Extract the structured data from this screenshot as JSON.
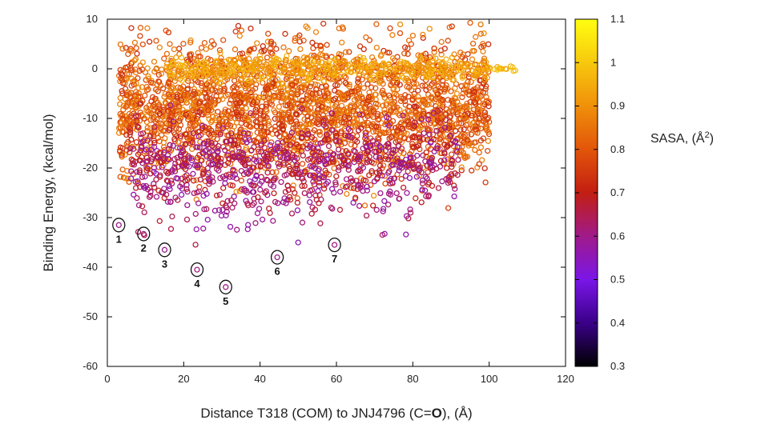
{
  "chart_data": {
    "type": "scatter",
    "title": "",
    "xlabel_parts": [
      "Distance T318 (COM) to JNJ4796 (C=",
      "O",
      "), (Å)"
    ],
    "ylabel": "Binding Energy, (kcal/mol)",
    "xlim": [
      0,
      120
    ],
    "ylim": [
      -60,
      10
    ],
    "xticks": [
      0,
      20,
      40,
      60,
      80,
      100,
      120
    ],
    "yticks": [
      -60,
      -50,
      -40,
      -30,
      -20,
      -10,
      0,
      10
    ],
    "grid": false,
    "colorbar": {
      "title_parts": [
        "SASA, (Å",
        "2",
        ")"
      ],
      "range": [
        0.3,
        1.1
      ],
      "ticks": [
        "0.3",
        "0.4",
        "0.5",
        "0.6",
        "0.7",
        "0.8",
        "0.9",
        "1",
        "1.1"
      ],
      "colormap": [
        "#000000",
        "#3a0088",
        "#7a16e8",
        "#a01a8a",
        "#c21e12",
        "#e2550a",
        "#f0900a",
        "#f7c80e",
        "#ffff10"
      ]
    },
    "highlighted_points": [
      {
        "label": "1",
        "x": 3,
        "y": -31.5,
        "sasa": 0.6
      },
      {
        "label": "2",
        "x": 9.5,
        "y": -33.3,
        "sasa": 0.6
      },
      {
        "label": "3",
        "x": 15,
        "y": -36.5,
        "sasa": 0.6
      },
      {
        "label": "4",
        "x": 23.5,
        "y": -40.5,
        "sasa": 0.6
      },
      {
        "label": "5",
        "x": 31,
        "y": -44,
        "sasa": 0.6
      },
      {
        "label": "6",
        "x": 44.5,
        "y": -38,
        "sasa": 0.6
      },
      {
        "label": "7",
        "x": 59.5,
        "y": -35.5,
        "sasa": 0.6
      }
    ],
    "point_clouds": [
      {
        "x_range": [
          3,
          100
        ],
        "y_mean": -8,
        "y_sd": 6.5,
        "count": 2600,
        "sasa_range": [
          0.72,
          0.9
        ]
      },
      {
        "x_range": [
          15,
          100
        ],
        "y_mean": 0,
        "y_sd": 1.2,
        "count": 500,
        "sasa_range": [
          0.88,
          0.98
        ]
      },
      {
        "x_range": [
          100,
          108
        ],
        "y_mean": 0,
        "y_sd": 0.2,
        "count": 14,
        "sasa_range": [
          0.95,
          1.0
        ]
      },
      {
        "x_range": [
          6,
          92
        ],
        "y_mean": -19,
        "y_sd": 4,
        "count": 700,
        "sasa_range": [
          0.55,
          0.72
        ]
      },
      {
        "x_range": [
          8,
          80
        ],
        "y_mean": -27,
        "y_sd": 3,
        "count": 120,
        "sasa_range": [
          0.55,
          0.68
        ]
      }
    ]
  }
}
